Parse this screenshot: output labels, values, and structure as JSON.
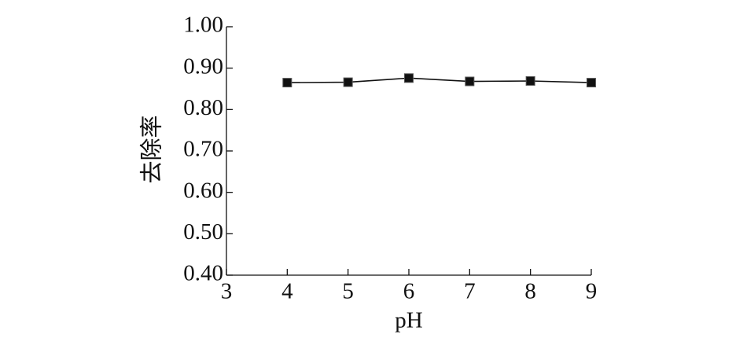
{
  "chart_data": {
    "type": "line",
    "x_label": "pH",
    "y_label": "去除率",
    "x": [
      4,
      5,
      6,
      7,
      8,
      9
    ],
    "values": [
      0.865,
      0.866,
      0.876,
      0.868,
      0.869,
      0.865
    ],
    "color": "#111111",
    "xlim": [
      3,
      9
    ],
    "xticks": [
      3,
      4,
      5,
      6,
      7,
      8,
      9
    ],
    "ylim": [
      0.4,
      1.0
    ],
    "yticks": [
      {
        "value": 0.4,
        "label": "0.40"
      },
      {
        "value": 0.5,
        "label": "0.50"
      },
      {
        "value": 0.6,
        "label": "0.60"
      },
      {
        "value": 0.7,
        "label": "0.70"
      },
      {
        "value": 0.8,
        "label": "0.80"
      },
      {
        "value": 0.9,
        "label": "0.90"
      },
      {
        "value": 1.0,
        "label": "1.00"
      }
    ],
    "grid": false
  }
}
